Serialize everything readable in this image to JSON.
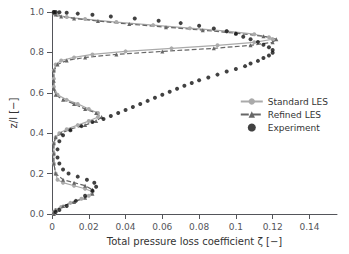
{
  "chart_data": {
    "type": "line",
    "xlabel": "Total pressure loss coefficient ζ [−]",
    "ylabel": "z/l [−]",
    "xlim": [
      0,
      0.155
    ],
    "ylim": [
      0,
      1.0
    ],
    "xticks": [
      0,
      0.02,
      0.04,
      0.06,
      0.08,
      0.1,
      0.12,
      0.14
    ],
    "yticks": [
      {
        "value": 0,
        "label": "0.0"
      },
      0.2,
      0.4,
      0.6,
      0.8,
      {
        "value": 1.0,
        "label": "1.0"
      }
    ],
    "grid": false,
    "legend": "right",
    "series": [
      {
        "name": "Standard LES",
        "type": "line",
        "color": "#aaaaaa",
        "marker": "circle",
        "line_style": "solid",
        "x": [
          0.001,
          0.001,
          0.002,
          0.005,
          0.01,
          0.016,
          0.02,
          0.022,
          0.018,
          0.012,
          0.006,
          0.003,
          0.002,
          0.001,
          0.001,
          0.001,
          0.002,
          0.004,
          0.008,
          0.014,
          0.02,
          0.025,
          0.025,
          0.02,
          0.014,
          0.008,
          0.003,
          0.001,
          0.001,
          0.001,
          0.002,
          0.005,
          0.012,
          0.022,
          0.04,
          0.065,
          0.09,
          0.11,
          0.12,
          0.118,
          0.11,
          0.095,
          0.075,
          0.055,
          0.035,
          0.018,
          0.008,
          0.003,
          0.001,
          0.001,
          0.001
        ],
        "values": [
          0.0,
          0.01,
          0.02,
          0.035,
          0.055,
          0.075,
          0.09,
          0.11,
          0.125,
          0.14,
          0.155,
          0.17,
          0.2,
          0.25,
          0.3,
          0.35,
          0.38,
          0.4,
          0.42,
          0.44,
          0.46,
          0.48,
          0.5,
          0.52,
          0.545,
          0.565,
          0.59,
          0.63,
          0.67,
          0.71,
          0.74,
          0.76,
          0.775,
          0.79,
          0.805,
          0.82,
          0.835,
          0.85,
          0.865,
          0.875,
          0.89,
          0.905,
          0.92,
          0.935,
          0.95,
          0.965,
          0.975,
          0.985,
          0.993,
          0.997,
          1.0
        ]
      },
      {
        "name": "Refined LES",
        "type": "line",
        "color": "#666666",
        "marker": "triangle",
        "line_style": "dashed",
        "x": [
          0.001,
          0.001,
          0.002,
          0.006,
          0.012,
          0.018,
          0.022,
          0.022,
          0.018,
          0.012,
          0.006,
          0.002,
          0.001,
          0.001,
          0.001,
          0.002,
          0.005,
          0.01,
          0.018,
          0.024,
          0.027,
          0.024,
          0.018,
          0.012,
          0.006,
          0.002,
          0.001,
          0.001,
          0.001,
          0.003,
          0.008,
          0.018,
          0.035,
          0.06,
          0.088,
          0.108,
          0.12,
          0.122,
          0.115,
          0.1,
          0.082,
          0.062,
          0.042,
          0.025,
          0.012,
          0.005,
          0.002,
          0.001,
          0.001
        ],
        "values": [
          0.0,
          0.01,
          0.02,
          0.04,
          0.06,
          0.08,
          0.1,
          0.12,
          0.14,
          0.155,
          0.17,
          0.2,
          0.25,
          0.3,
          0.35,
          0.38,
          0.4,
          0.42,
          0.44,
          0.46,
          0.48,
          0.5,
          0.52,
          0.545,
          0.565,
          0.59,
          0.62,
          0.66,
          0.71,
          0.74,
          0.76,
          0.775,
          0.79,
          0.805,
          0.82,
          0.835,
          0.85,
          0.865,
          0.88,
          0.895,
          0.91,
          0.925,
          0.94,
          0.955,
          0.968,
          0.978,
          0.988,
          0.995,
          1.0
        ]
      },
      {
        "name": "Experiment",
        "type": "scatter",
        "color": "#111111",
        "marker": "circle",
        "x": [
          0.002,
          0.004,
          0.008,
          0.013,
          0.018,
          0.022,
          0.024,
          0.023,
          0.019,
          0.014,
          0.009,
          0.006,
          0.004,
          0.003,
          0.003,
          0.004,
          0.006,
          0.01,
          0.016,
          0.022,
          0.028,
          0.032,
          0.036,
          0.04,
          0.044,
          0.048,
          0.052,
          0.056,
          0.06,
          0.064,
          0.068,
          0.072,
          0.076,
          0.08,
          0.085,
          0.09,
          0.095,
          0.1,
          0.105,
          0.108,
          0.112,
          0.115,
          0.118,
          0.12,
          0.12,
          0.118,
          0.115,
          0.112,
          0.108,
          0.104,
          0.1,
          0.095,
          0.088,
          0.08,
          0.07,
          0.058,
          0.045,
          0.032,
          0.022,
          0.014,
          0.008,
          0.004,
          0.002,
          0.001
        ],
        "values": [
          0.01,
          0.02,
          0.04,
          0.065,
          0.09,
          0.115,
          0.135,
          0.155,
          0.17,
          0.185,
          0.2,
          0.22,
          0.25,
          0.28,
          0.32,
          0.36,
          0.39,
          0.415,
          0.435,
          0.455,
          0.47,
          0.485,
          0.5,
          0.515,
          0.53,
          0.545,
          0.56,
          0.575,
          0.59,
          0.605,
          0.62,
          0.635,
          0.648,
          0.662,
          0.676,
          0.69,
          0.705,
          0.718,
          0.732,
          0.745,
          0.758,
          0.772,
          0.785,
          0.798,
          0.812,
          0.825,
          0.838,
          0.852,
          0.865,
          0.878,
          0.892,
          0.905,
          0.918,
          0.932,
          0.945,
          0.957,
          0.968,
          0.978,
          0.986,
          0.992,
          0.996,
          0.999,
          1.0,
          1.0
        ]
      }
    ]
  }
}
